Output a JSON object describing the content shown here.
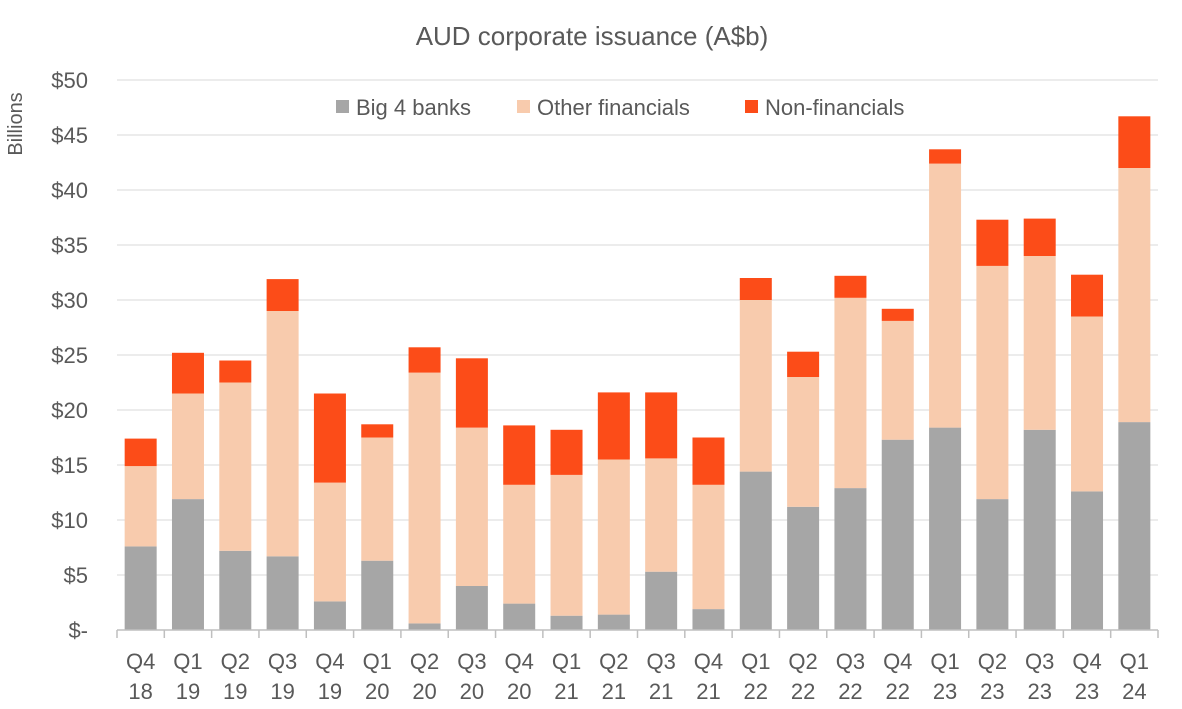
{
  "chart_data": {
    "type": "bar",
    "stacked": true,
    "title": "AUD corporate issuance (A$b)",
    "ylabel": "Billions",
    "ylim": [
      0,
      50
    ],
    "yticks": [
      0,
      5,
      10,
      15,
      20,
      25,
      30,
      35,
      40,
      45,
      50
    ],
    "ytick_labels": [
      "$-",
      "$5",
      "$10",
      "$15",
      "$20",
      "$25",
      "$30",
      "$35",
      "$40",
      "$45",
      "$50"
    ],
    "grid": true,
    "legend_position": "top",
    "categories": [
      [
        "Q4",
        "18"
      ],
      [
        "Q1",
        "19"
      ],
      [
        "Q2",
        "19"
      ],
      [
        "Q3",
        "19"
      ],
      [
        "Q4",
        "19"
      ],
      [
        "Q1",
        "20"
      ],
      [
        "Q2",
        "20"
      ],
      [
        "Q3",
        "20"
      ],
      [
        "Q4",
        "20"
      ],
      [
        "Q1",
        "21"
      ],
      [
        "Q2",
        "21"
      ],
      [
        "Q3",
        "21"
      ],
      [
        "Q4",
        "21"
      ],
      [
        "Q1",
        "22"
      ],
      [
        "Q2",
        "22"
      ],
      [
        "Q3",
        "22"
      ],
      [
        "Q4",
        "22"
      ],
      [
        "Q1",
        "23"
      ],
      [
        "Q2",
        "23"
      ],
      [
        "Q3",
        "23"
      ],
      [
        "Q4",
        "23"
      ],
      [
        "Q1",
        "24"
      ]
    ],
    "series": [
      {
        "name": "Big 4 banks",
        "color": "#a6a6a6",
        "values": [
          7.6,
          11.9,
          7.2,
          6.7,
          2.6,
          6.3,
          0.6,
          4.0,
          2.4,
          1.3,
          1.4,
          5.3,
          1.9,
          14.4,
          11.2,
          12.9,
          17.3,
          18.4,
          11.9,
          18.2,
          12.6,
          18.9
        ]
      },
      {
        "name": "Other financials",
        "color": "#f8cbad",
        "values": [
          7.3,
          9.6,
          15.3,
          22.3,
          10.8,
          11.2,
          22.8,
          14.4,
          10.8,
          12.8,
          14.1,
          10.3,
          11.3,
          15.6,
          11.8,
          17.3,
          10.8,
          24.0,
          21.2,
          15.8,
          15.9,
          23.1
        ]
      },
      {
        "name": "Non-financials",
        "color": "#fc4c18",
        "values": [
          2.5,
          3.7,
          2.0,
          2.9,
          8.1,
          1.2,
          2.3,
          6.3,
          5.4,
          4.1,
          6.1,
          6.0,
          4.3,
          2.0,
          2.3,
          2.0,
          1.1,
          1.3,
          4.2,
          3.4,
          3.8,
          4.7
        ]
      }
    ]
  },
  "colors": {
    "grid": "#d9d9d9",
    "axis": "#bfbfbf",
    "text": "#595959"
  }
}
